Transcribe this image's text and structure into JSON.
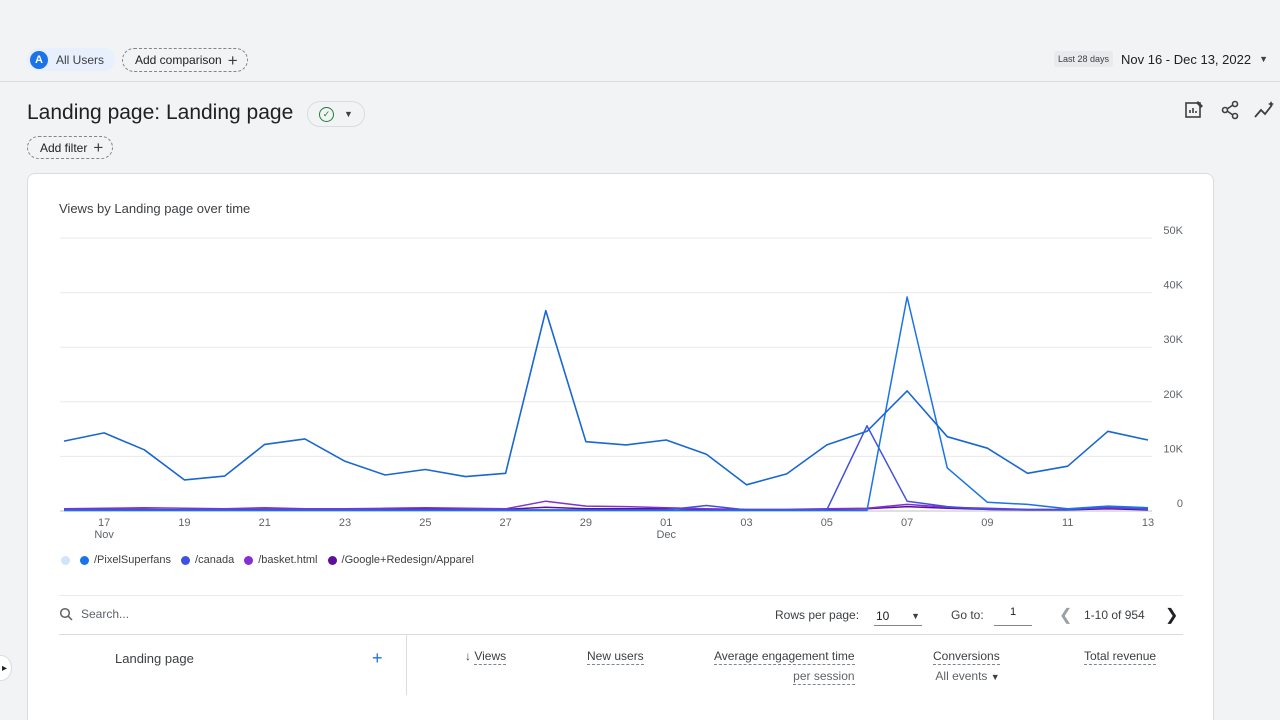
{
  "header": {
    "segment_avatar": "A",
    "segment_label": "All Users",
    "add_comparison": "Add comparison",
    "date_pill": "Last 28 days",
    "date_range": "Nov 16 - Dec 13, 2022"
  },
  "report": {
    "title": "Landing page: Landing page",
    "add_filter": "Add filter"
  },
  "chart_data": {
    "type": "line",
    "title": "Views by Landing page over time",
    "ylim": [
      0,
      50000
    ],
    "yticks": [
      "0",
      "10K",
      "20K",
      "30K",
      "40K",
      "50K"
    ],
    "x": [
      "Nov 16",
      "Nov 17",
      "Nov 18",
      "Nov 19",
      "Nov 20",
      "Nov 21",
      "Nov 22",
      "Nov 23",
      "Nov 24",
      "Nov 25",
      "Nov 26",
      "Nov 27",
      "Nov 28",
      "Nov 29",
      "Nov 30",
      "Dec 01",
      "Dec 02",
      "Dec 03",
      "Dec 04",
      "Dec 05",
      "Dec 06",
      "Dec 07",
      "Dec 08",
      "Dec 09",
      "Dec 10",
      "Dec 11",
      "Dec 12",
      "Dec 13"
    ],
    "xticks": [
      {
        "label": "17",
        "sub": "Nov",
        "index": 1
      },
      {
        "label": "19",
        "sub": "",
        "index": 3
      },
      {
        "label": "21",
        "sub": "",
        "index": 5
      },
      {
        "label": "23",
        "sub": "",
        "index": 7
      },
      {
        "label": "25",
        "sub": "",
        "index": 9
      },
      {
        "label": "27",
        "sub": "",
        "index": 11
      },
      {
        "label": "29",
        "sub": "",
        "index": 13
      },
      {
        "label": "01",
        "sub": "Dec",
        "index": 15
      },
      {
        "label": "03",
        "sub": "",
        "index": 17
      },
      {
        "label": "05",
        "sub": "",
        "index": 19
      },
      {
        "label": "07",
        "sub": "",
        "index": 21
      },
      {
        "label": "09",
        "sub": "",
        "index": 23
      },
      {
        "label": "11",
        "sub": "",
        "index": 25
      },
      {
        "label": "13",
        "sub": "",
        "index": 27
      }
    ],
    "series": [
      {
        "color": "#1967d2",
        "values": [
          12800,
          14300,
          11200,
          5700,
          6400,
          12200,
          13200,
          9100,
          6600,
          7600,
          6300,
          6900,
          36700,
          12700,
          12100,
          13000,
          10400,
          4800,
          6800,
          12100,
          14600,
          22000,
          13600,
          11500,
          6900,
          8200,
          14600,
          13000
        ]
      },
      {
        "name": "/PixelSuperfans",
        "color": "#1a73e8",
        "values": [
          100,
          100,
          100,
          100,
          100,
          100,
          100,
          100,
          100,
          100,
          100,
          100,
          100,
          100,
          100,
          100,
          100,
          100,
          100,
          100,
          100,
          39200,
          7900,
          1600,
          1200,
          400,
          900,
          600
        ]
      },
      {
        "name": "/canada",
        "color": "#3f51e0",
        "values": [
          200,
          200,
          200,
          200,
          200,
          200,
          200,
          200,
          200,
          200,
          200,
          200,
          200,
          200,
          200,
          200,
          1000,
          200,
          200,
          200,
          15600,
          1800,
          800,
          300,
          200,
          200,
          800,
          300
        ]
      },
      {
        "name": "/basket.html",
        "color": "#8430ce",
        "values": [
          400,
          500,
          600,
          500,
          400,
          600,
          400,
          400,
          500,
          600,
          500,
          400,
          1800,
          900,
          800,
          600,
          400,
          300,
          300,
          400,
          500,
          1200,
          700,
          500,
          300,
          300,
          600,
          400
        ]
      },
      {
        "name": "/Google+Redesign/Apparel",
        "color": "#5b0f9c",
        "values": [
          200,
          300,
          300,
          200,
          300,
          300,
          300,
          300,
          300,
          400,
          300,
          300,
          700,
          400,
          400,
          400,
          300,
          200,
          200,
          300,
          400,
          800,
          500,
          300,
          200,
          200,
          400,
          200
        ]
      }
    ],
    "legend_total_color": "#d2e3fc"
  },
  "table": {
    "search_placeholder": "Search...",
    "rows_per_page_label": "Rows per page:",
    "rows_per_page": "10",
    "goto_label": "Go to:",
    "goto_value": "1",
    "pager": "1-10 of 954",
    "dimension_header": "Landing page",
    "columns": {
      "views": "Views",
      "new_users": "New users",
      "engagement_line1": "Average engagement time",
      "engagement_line2": "per session",
      "conversions": "Conversions",
      "conversions_sub": "All events",
      "revenue": "Total revenue"
    }
  }
}
